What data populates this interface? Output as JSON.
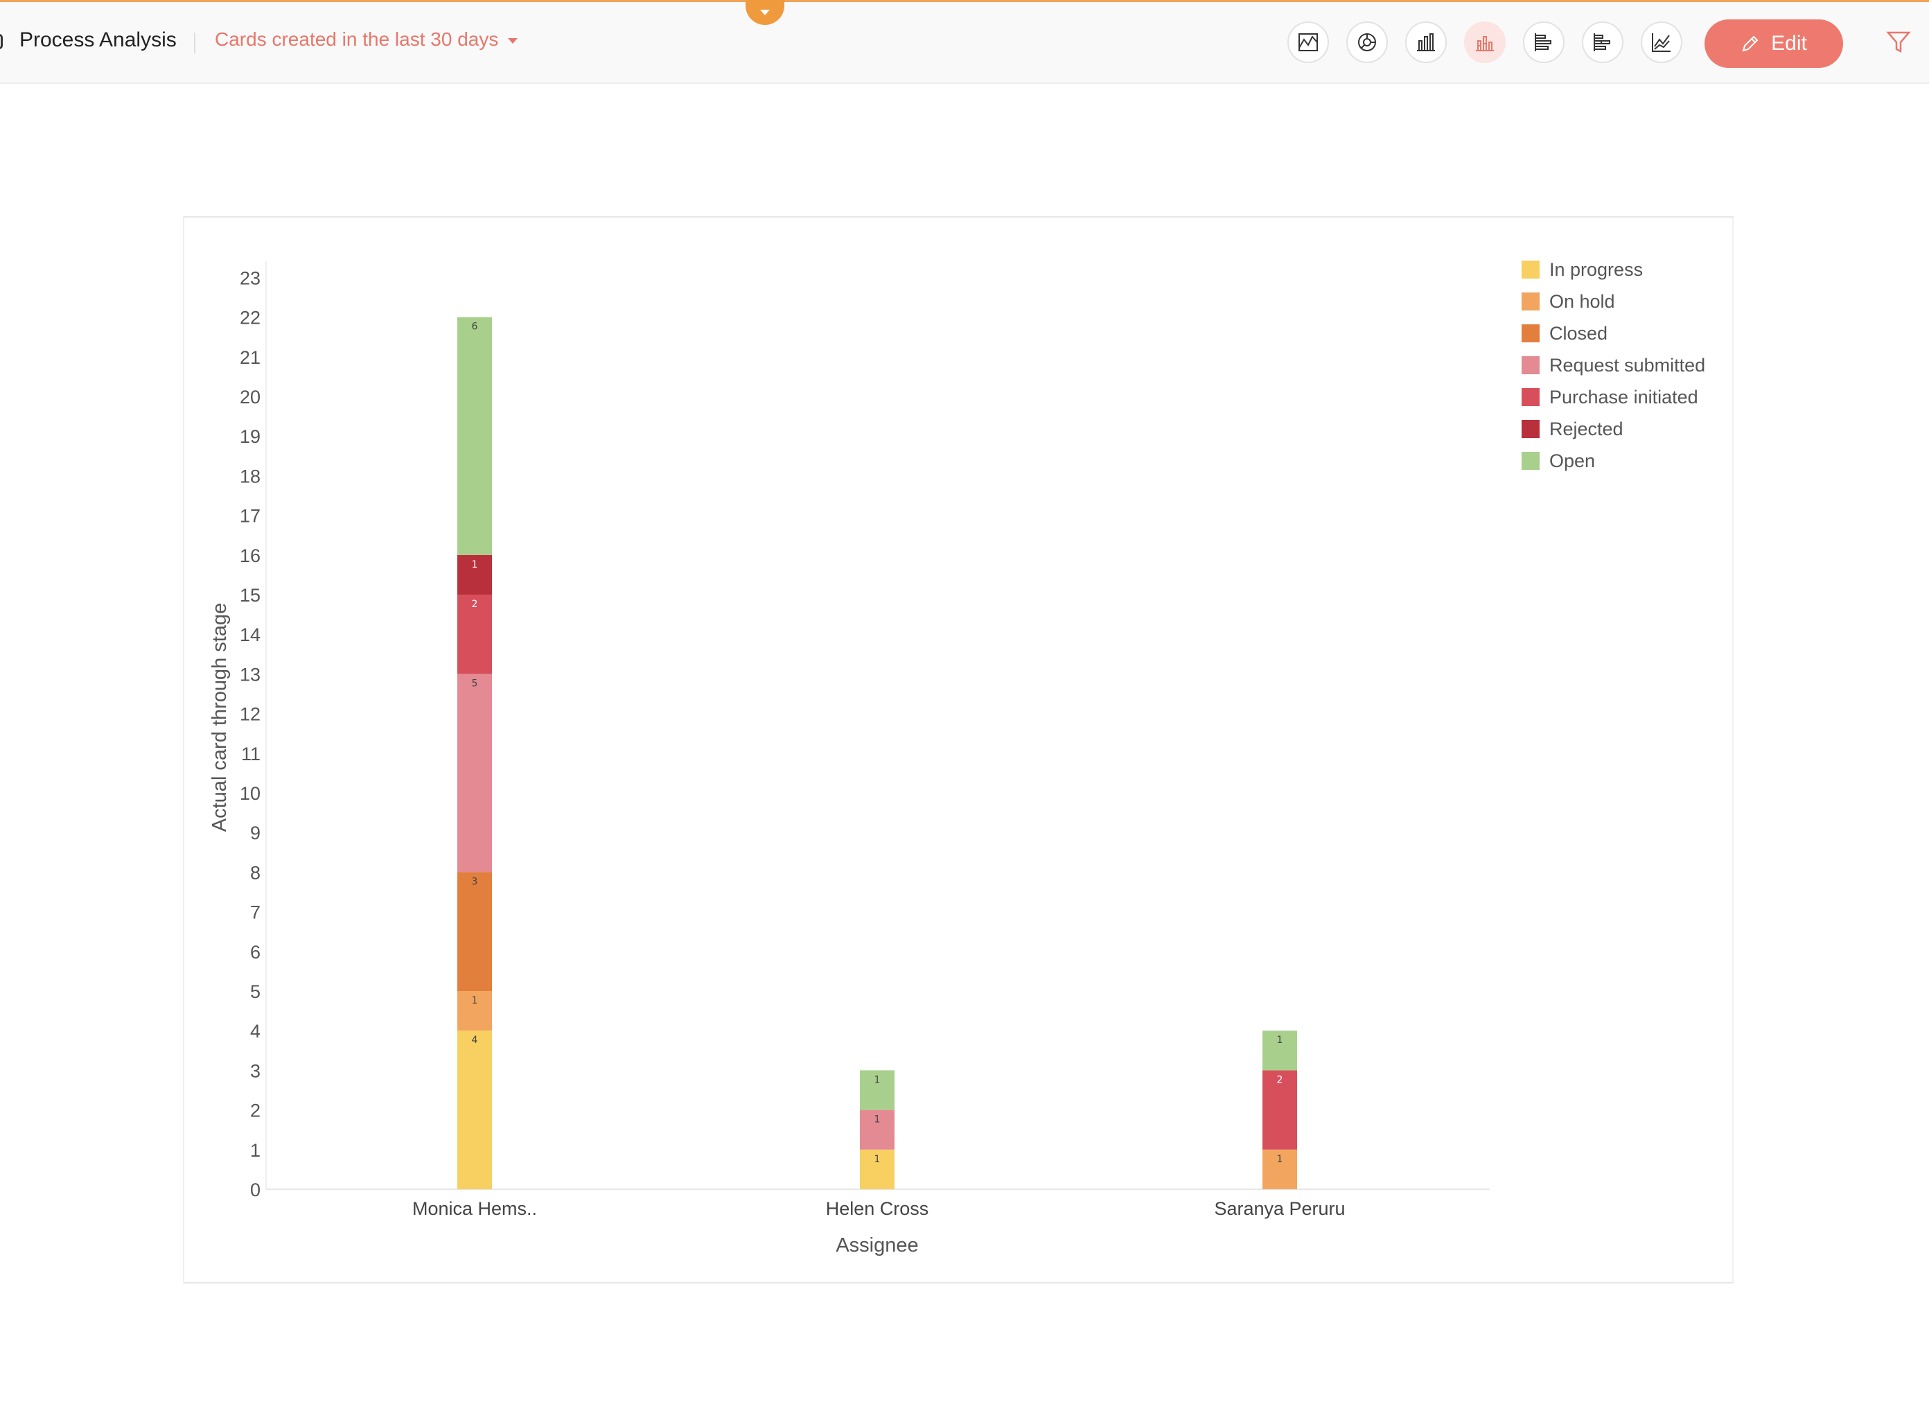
{
  "header": {
    "title": "Process Analysis",
    "filter_label": "Cards created in the last 30 days",
    "edit_label": "Edit",
    "chart_type_buttons": [
      {
        "icon": "area-chart-icon"
      },
      {
        "icon": "pie-chart-icon"
      },
      {
        "icon": "bar-chart-icon"
      },
      {
        "icon": "stacked-bar-chart-icon",
        "active": true
      },
      {
        "icon": "horizontal-bar-chart-icon"
      },
      {
        "icon": "stacked-horizontal-bar-chart-icon"
      },
      {
        "icon": "line-chart-icon"
      }
    ]
  },
  "colors": {
    "accent": "#ee7a6f",
    "pull_tab": "#ef9a3d"
  },
  "chart_data": {
    "type": "bar",
    "stacked": true,
    "xlabel": "Assignee",
    "ylabel": "Actual card through stage",
    "categories": [
      "Monica Hems..",
      "Helen Cross",
      "Saranya Peruru"
    ],
    "ylim": [
      0,
      23
    ],
    "yticks": [
      0,
      1,
      2,
      3,
      4,
      5,
      6,
      7,
      8,
      9,
      10,
      11,
      12,
      13,
      14,
      15,
      16,
      17,
      18,
      19,
      20,
      21,
      22,
      23
    ],
    "legend_position": "top-right",
    "series": [
      {
        "name": "In progress",
        "color": "#f8cf61",
        "values": [
          4,
          1,
          0
        ]
      },
      {
        "name": "On hold",
        "color": "#f2a55e",
        "values": [
          1,
          0,
          1
        ]
      },
      {
        "name": "Closed",
        "color": "#e37f3c",
        "values": [
          3,
          0,
          0
        ]
      },
      {
        "name": "Request submitted",
        "color": "#e48a93",
        "values": [
          5,
          1,
          0
        ]
      },
      {
        "name": "Purchase initiated",
        "color": "#d84f5c",
        "values": [
          2,
          0,
          2
        ]
      },
      {
        "name": "Rejected",
        "color": "#b8303a",
        "values": [
          1,
          0,
          0
        ]
      },
      {
        "name": "Open",
        "color": "#a8d08c",
        "values": [
          6,
          1,
          1
        ]
      }
    ]
  }
}
